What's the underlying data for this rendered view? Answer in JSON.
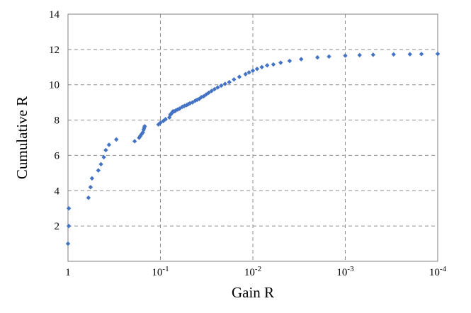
{
  "chart_data": {
    "type": "scatter",
    "title": "",
    "xlabel": "Gain R",
    "ylabel": "Cumulative R",
    "x_scale": "log-reversed",
    "xlim": [
      1,
      0.0001
    ],
    "ylim": [
      0,
      14
    ],
    "x_ticks": [
      {
        "value": 1,
        "base": "1",
        "exp": ""
      },
      {
        "value": 0.1,
        "base": "10",
        "exp": "-1"
      },
      {
        "value": 0.01,
        "base": "10",
        "exp": "-2"
      },
      {
        "value": 0.001,
        "base": "10",
        "exp": "-3"
      },
      {
        "value": 0.0001,
        "base": "10",
        "exp": "-4"
      }
    ],
    "y_ticks": [
      "2",
      "4",
      "6",
      "8",
      "10",
      "12",
      "14"
    ],
    "grid": true,
    "marker_color": "#4472C4",
    "marker": "diamond",
    "series": [
      {
        "x": [
          1,
          0.98,
          0.98,
          0.6,
          0.57,
          0.55,
          0.47,
          0.44,
          0.41,
          0.39,
          0.36,
          0.3,
          0.19,
          0.17,
          0.165,
          0.16,
          0.155,
          0.152,
          0.15,
          0.148,
          0.105,
          0.1,
          0.093,
          0.088,
          0.08,
          0.078,
          0.077,
          0.075,
          0.074,
          0.073,
          0.07,
          0.068,
          0.065,
          0.062,
          0.058,
          0.055,
          0.052,
          0.05,
          0.048,
          0.045,
          0.042,
          0.04,
          0.038,
          0.036,
          0.034,
          0.032,
          0.03,
          0.028,
          0.026,
          0.024,
          0.022,
          0.02,
          0.018,
          0.016,
          0.014,
          0.012,
          0.011,
          0.01,
          0.009,
          0.008,
          0.007,
          0.006,
          0.005,
          0.004,
          0.003,
          0.002,
          0.0015,
          0.001,
          0.0007,
          0.0005,
          0.0003,
          0.0002,
          0.00015,
          0.0001
        ],
        "y": [
          1.0,
          2.0,
          3.0,
          3.6,
          4.2,
          4.7,
          5.15,
          5.5,
          5.9,
          6.3,
          6.6,
          6.9,
          6.8,
          7.0,
          7.1,
          7.2,
          7.3,
          7.45,
          7.55,
          7.65,
          7.75,
          7.85,
          7.95,
          8.05,
          8.15,
          8.3,
          8.35,
          8.4,
          8.45,
          8.5,
          8.5,
          8.55,
          8.6,
          8.65,
          8.75,
          8.8,
          8.85,
          8.9,
          8.95,
          9.0,
          9.1,
          9.15,
          9.2,
          9.3,
          9.35,
          9.45,
          9.55,
          9.65,
          9.75,
          9.85,
          9.95,
          10.05,
          10.15,
          10.3,
          10.45,
          10.6,
          10.7,
          10.8,
          10.9,
          11.0,
          11.1,
          11.15,
          11.25,
          11.35,
          11.45,
          11.55,
          11.6,
          11.65,
          11.68,
          11.7,
          11.72,
          11.73,
          11.74,
          11.75
        ]
      }
    ]
  }
}
